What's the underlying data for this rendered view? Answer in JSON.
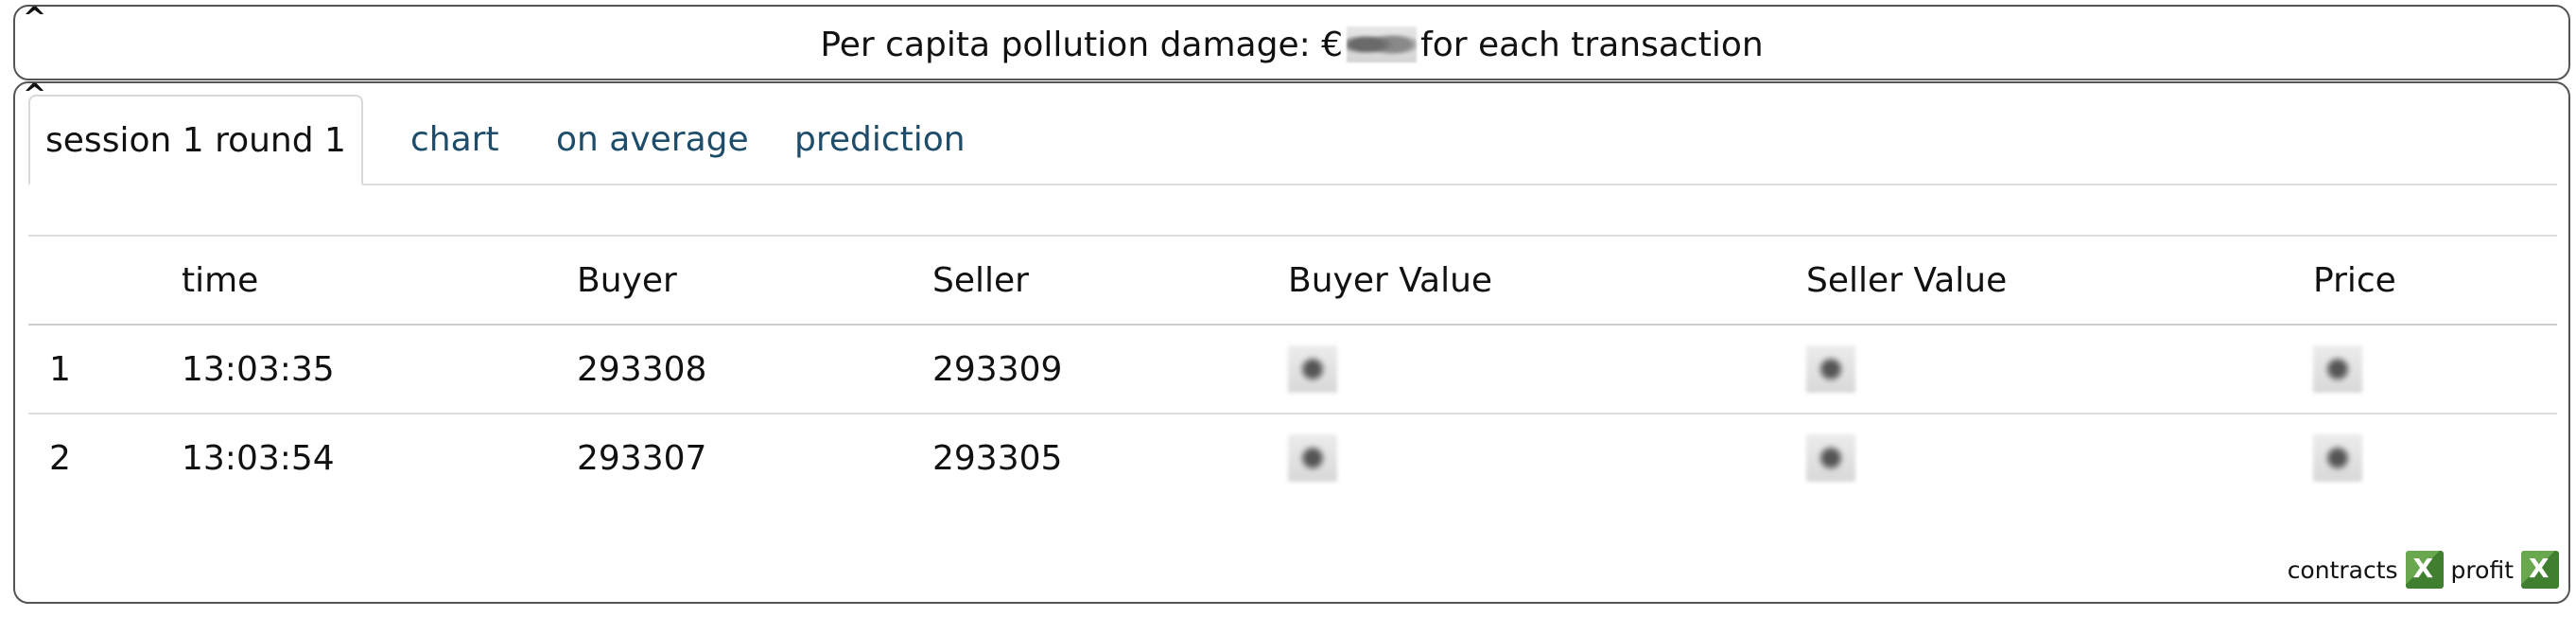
{
  "banner": {
    "prefix": "Per capita pollution damage: €",
    "suffix": "for each transaction"
  },
  "tabs": [
    {
      "label": "session 1 round 1",
      "active": true
    },
    {
      "label": "chart",
      "active": false
    },
    {
      "label": "on average",
      "active": false
    },
    {
      "label": "prediction",
      "active": false
    }
  ],
  "table": {
    "headers": [
      "",
      "time",
      "Buyer",
      "Seller",
      "Buyer Value",
      "Seller Value",
      "Price"
    ],
    "rows": [
      {
        "n": "1",
        "time": "13:03:35",
        "buyer": "293308",
        "seller": "293309"
      },
      {
        "n": "2",
        "time": "13:03:54",
        "buyer": "293307",
        "seller": "293305"
      }
    ]
  },
  "footer": {
    "contracts_label": "contracts",
    "profit_label": "profit"
  }
}
